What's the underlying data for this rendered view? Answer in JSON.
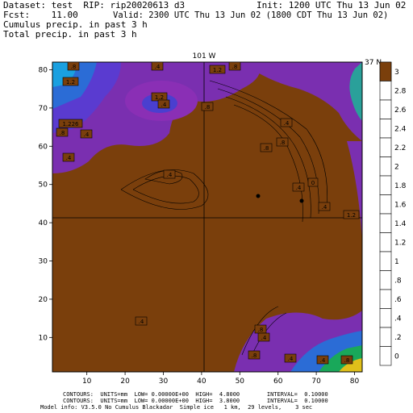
{
  "header": {
    "dataset": "Dataset: test  RIP: rip20020613 d3",
    "init": "Init: 1200 UTC Thu 13 Jun 02",
    "fcst": "Fcst:    11.00",
    "valid": "Valid: 2300 UTC Thu 13 Jun 02 (1800 CDT Thu 13 Jun 02)",
    "field1": "Cumulus precip. in past 3 h",
    "field2": "Total precip. in past 3 h"
  },
  "map": {
    "meridian_label": "101 W",
    "parallel_label": "37 N",
    "x_ticks": [
      "10",
      "20",
      "30",
      "40",
      "50",
      "60",
      "70",
      "80"
    ],
    "y_ticks": [
      "10",
      "20",
      "30",
      "40",
      "50",
      "60",
      "70",
      "80"
    ],
    "contour_labels": [
      ".8",
      "1.2",
      ".4",
      "1.2",
      ".8",
      "1.2",
      ".4",
      ".8",
      "1.226",
      ".8",
      ".4",
      ".4",
      ".4",
      ".4",
      ".8",
      ".8",
      ".4",
      "0",
      ".4",
      "1.2",
      ".4",
      ".8",
      ".4",
      ".8",
      ".4",
      ".4",
      ".8"
    ],
    "colors": {
      "background": "#7a3f0c",
      "purple": "#7a2fb0",
      "blue": "#2b6cd6"
    }
  },
  "colorbar": {
    "labels": [
      "3",
      "2.8",
      "2.6",
      "2.4",
      "2.2",
      "2",
      "1.8",
      "1.6",
      "1.4",
      "1.2",
      "1",
      ".8",
      ".6",
      ".4",
      ".2",
      "0"
    ]
  },
  "footer": {
    "line1": "CONTOURS:  UNITS=mm  LOW= 0.00000E+00  HIGH=  4.8000        INTERVAL=  0.10000",
    "line2": "CONTOURS:  UNITS=mm  LOW= 0.00000E+00  HIGH=  3.8000        INTERVAL=  0.10000",
    "line3": "Model info: V3.5.0 No Cumulus Blackadar  Simple ice   1 km,  29 levels,    3 sec"
  }
}
